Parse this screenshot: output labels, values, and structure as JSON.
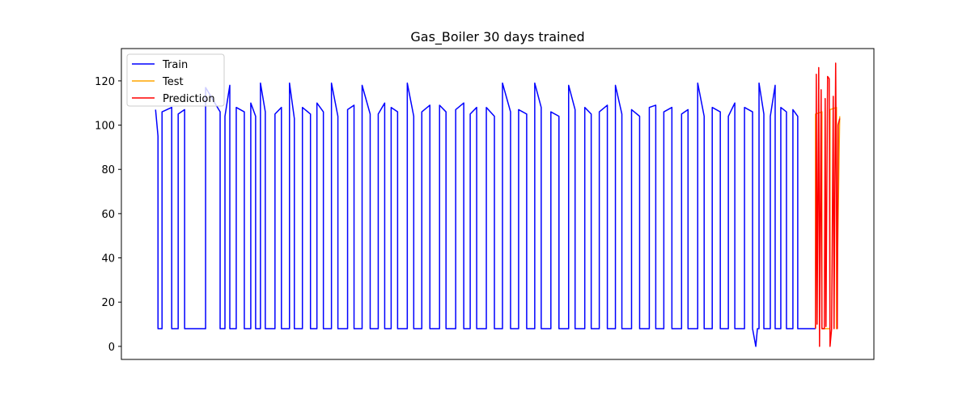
{
  "chart_data": {
    "type": "line",
    "title": "Gas_Boiler 30 days trained",
    "xlim": [
      -42.4,
      890.4
    ],
    "ylim": [
      -5.9,
      134.6
    ],
    "yticks": [
      0,
      20,
      40,
      60,
      80,
      100,
      120
    ],
    "legend": "upper left",
    "series": [
      {
        "name": "Train",
        "color": "#0000ff",
        "x": [
          0,
          0,
          3,
          3,
          8,
          8,
          20,
          20,
          28,
          28,
          36,
          36,
          62,
          62,
          80,
          80,
          86,
          86,
          92,
          92,
          100,
          100,
          110,
          110,
          118,
          118,
          124,
          124,
          130,
          130,
          136,
          136,
          148,
          148,
          156,
          156,
          166,
          166,
          172,
          172,
          182,
          182,
          192,
          192,
          200,
          200,
          208,
          208,
          218,
          218,
          226,
          226,
          238,
          238,
          246,
          246,
          256,
          256,
          266,
          266,
          276,
          276,
          284,
          284,
          292,
          292,
          300,
          300,
          312,
          312,
          320,
          320,
          330,
          330,
          340,
          340,
          352,
          352,
          360,
          360,
          372,
          372,
          382,
          382,
          390,
          390,
          398,
          398,
          410,
          410,
          420,
          420,
          430,
          430,
          440,
          440,
          450,
          450,
          460,
          460,
          470,
          470,
          478,
          478,
          490,
          490,
          500,
          500,
          512,
          512,
          520,
          520,
          532,
          532,
          540,
          540,
          550,
          550,
          560,
          560,
          570,
          570,
          578,
          578,
          590,
          590,
          600,
          600,
          612,
          612,
          620,
          620,
          630,
          630,
          640,
          640,
          652,
          652,
          660,
          660,
          672,
          672,
          680,
          680,
          690,
          690,
          700,
          700,
          710,
          710,
          718,
          718,
          730,
          730,
          740,
          740,
          744,
          746,
          748,
          748,
          754,
          754,
          762,
          762,
          768,
          768,
          775,
          775,
          782,
          782,
          790,
          790,
          796,
          796,
          818
        ],
        "values": [
          107,
          107,
          95,
          8,
          8,
          106,
          108,
          8,
          8,
          105,
          107,
          8,
          8,
          117,
          106,
          8,
          8,
          104,
          118,
          8,
          8,
          108,
          106,
          8,
          8,
          110,
          104,
          8,
          8,
          119,
          106,
          8,
          8,
          105,
          108,
          8,
          8,
          119,
          103,
          8,
          8,
          108,
          105,
          8,
          8,
          110,
          106,
          8,
          8,
          119,
          104,
          8,
          8,
          107,
          109,
          8,
          8,
          118,
          105,
          8,
          8,
          105,
          110,
          8,
          8,
          108,
          106,
          8,
          8,
          119,
          104,
          8,
          8,
          106,
          109,
          8,
          8,
          109,
          106,
          8,
          8,
          107,
          110,
          8,
          8,
          105,
          108,
          8,
          8,
          108,
          104,
          8,
          8,
          119,
          106,
          8,
          8,
          107,
          105,
          8,
          8,
          119,
          108,
          8,
          8,
          106,
          104,
          8,
          8,
          118,
          107,
          8,
          8,
          108,
          105,
          8,
          8,
          106,
          109,
          8,
          8,
          118,
          105,
          8,
          8,
          107,
          104,
          8,
          8,
          108,
          109,
          8,
          8,
          106,
          108,
          8,
          8,
          105,
          107,
          8,
          8,
          119,
          104,
          8,
          8,
          108,
          106,
          8,
          8,
          104,
          110,
          8,
          8,
          108,
          106,
          8,
          0,
          8,
          8,
          119,
          105,
          8,
          8,
          104,
          118,
          8,
          8,
          108,
          106,
          8,
          8,
          107,
          104,
          8,
          8
        ]
      },
      {
        "name": "Test",
        "color": "#ffa500",
        "x": [
          818,
          818,
          826,
          826,
          836,
          836,
          844,
          844,
          848
        ],
        "values": [
          8,
          105,
          106,
          8,
          8,
          107,
          108,
          8,
          104
        ]
      },
      {
        "name": "Prediction",
        "color": "#ff0000",
        "x": [
          818,
          819,
          820,
          822,
          823,
          825,
          826,
          829,
          830,
          831,
          833,
          835,
          836,
          838,
          840,
          841,
          843,
          845,
          846,
          848
        ],
        "values": [
          8,
          123,
          10,
          126,
          0,
          116,
          8,
          8,
          112,
          9,
          122,
          121,
          0,
          8,
          113,
          8,
          128,
          8,
          100,
          103
        ]
      }
    ]
  }
}
